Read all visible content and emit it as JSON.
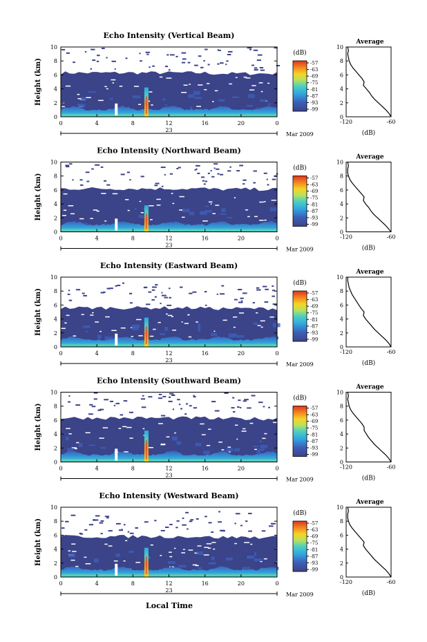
{
  "figure": {
    "xlabel": "Local Time",
    "date_label": "Mar 2009",
    "day_label": "23",
    "colorbar_unit": "(dB)",
    "avg_title": "Average",
    "avg_xlabel": "(dB)",
    "ylabel": "Height (km)"
  },
  "colors": {
    "background_fill": "#3b4389",
    "low_echo": "#3b4389",
    "mid_echo": "#2fa8e0",
    "high_echo": "#f5d427",
    "peak_echo": "#e0331f"
  },
  "chart_data": [
    {
      "type": "heatmap",
      "title": "Echo Intensity (Vertical Beam)",
      "ylabel": "Height (km)",
      "xlabel": "Local Time",
      "xticks": [
        "0",
        "4",
        "8",
        "12",
        "16",
        "20",
        "0"
      ],
      "yticks": [
        "0",
        "2",
        "4",
        "6",
        "8",
        "10"
      ],
      "xlim": [
        0,
        24
      ],
      "ylim": [
        0,
        10
      ],
      "cbar_ticks": [
        "-57",
        "-63",
        "-69",
        "-75",
        "-81",
        "-87",
        "-93",
        "-99"
      ],
      "echo_top_km": 6.3,
      "spike_hour": 9.5,
      "spike_top_km": 4.2,
      "avg_profile": {
        "title": "Average",
        "xlabel": "(dB)",
        "xticks": [
          "-120",
          "-60"
        ],
        "xlim": [
          -120,
          -60
        ],
        "ylim": [
          0,
          10
        ],
        "h": [
          0,
          0.5,
          1,
          1.5,
          2,
          2.5,
          3,
          3.5,
          4,
          4.5,
          5,
          5.5,
          6,
          6.5,
          7,
          7.5,
          8,
          8.5,
          9,
          9.5,
          10
        ],
        "db": [
          -60,
          -63,
          -67,
          -72,
          -77,
          -82,
          -86,
          -89,
          -93,
          -97,
          -96,
          -99,
          -103,
          -107,
          -111,
          -114,
          -116,
          -117,
          -118,
          -117,
          -118
        ]
      }
    },
    {
      "type": "heatmap",
      "title": "Echo Intensity (Northward Beam)",
      "ylabel": "Height (km)",
      "xlabel": "Local Time",
      "xticks": [
        "0",
        "4",
        "8",
        "12",
        "16",
        "20",
        "0"
      ],
      "yticks": [
        "0",
        "2",
        "4",
        "6",
        "8",
        "10"
      ],
      "xlim": [
        0,
        24
      ],
      "ylim": [
        0,
        10
      ],
      "cbar_ticks": [
        "-57",
        "-63",
        "-69",
        "-75",
        "-81",
        "-87",
        "-93",
        "-99"
      ],
      "echo_top_km": 6.2,
      "spike_hour": 9.5,
      "spike_top_km": 3.8,
      "avg_profile": {
        "title": "Average",
        "xlabel": "(dB)",
        "xticks": [
          "-120",
          "-60"
        ],
        "xlim": [
          -120,
          -60
        ],
        "ylim": [
          0,
          10
        ],
        "h": [
          0,
          0.5,
          1,
          1.5,
          2,
          2.5,
          3,
          3.5,
          4,
          4.5,
          5,
          5.5,
          6,
          6.5,
          7,
          7.5,
          8,
          8.5,
          9,
          9.5,
          10
        ],
        "db": [
          -60,
          -64,
          -68,
          -73,
          -78,
          -83,
          -87,
          -90,
          -94,
          -97,
          -96,
          -100,
          -104,
          -108,
          -112,
          -115,
          -117,
          -118,
          -118,
          -117,
          -118
        ]
      }
    },
    {
      "type": "heatmap",
      "title": "Echo Intensity (Eastward Beam)",
      "ylabel": "Height (km)",
      "xlabel": "Local Time",
      "xticks": [
        "0",
        "4",
        "8",
        "12",
        "16",
        "20",
        "0"
      ],
      "yticks": [
        "0",
        "2",
        "4",
        "6",
        "8",
        "10"
      ],
      "xlim": [
        0,
        24
      ],
      "ylim": [
        0,
        10
      ],
      "cbar_ticks": [
        "-57",
        "-63",
        "-69",
        "-75",
        "-81",
        "-87",
        "-93",
        "-99"
      ],
      "echo_top_km": 5.6,
      "spike_hour": 9.5,
      "spike_top_km": 4.2,
      "avg_profile": {
        "title": "Average",
        "xlabel": "(dB)",
        "xticks": [
          "-120",
          "-60"
        ],
        "xlim": [
          -120,
          -60
        ],
        "ylim": [
          0,
          10
        ],
        "h": [
          0,
          0.5,
          1,
          1.5,
          2,
          2.5,
          3,
          3.5,
          4,
          4.5,
          5,
          5.5,
          6,
          6.5,
          7,
          7.5,
          8,
          8.5,
          9,
          9.5,
          10
        ],
        "db": [
          -60,
          -63,
          -67,
          -72,
          -77,
          -82,
          -86,
          -90,
          -94,
          -97,
          -96,
          -100,
          -103,
          -106,
          -109,
          -112,
          -114,
          -116,
          -117,
          -118,
          -118
        ]
      }
    },
    {
      "type": "heatmap",
      "title": "Echo Intensity (Southward Beam)",
      "ylabel": "Height (km)",
      "xlabel": "Local Time",
      "xticks": [
        "0",
        "4",
        "8",
        "12",
        "16",
        "20",
        "0"
      ],
      "yticks": [
        "0",
        "2",
        "4",
        "6",
        "8",
        "10"
      ],
      "xlim": [
        0,
        24
      ],
      "ylim": [
        0,
        10
      ],
      "cbar_ticks": [
        "-57",
        "-63",
        "-69",
        "-75",
        "-81",
        "-87",
        "-93",
        "-99"
      ],
      "echo_top_km": 6.3,
      "spike_hour": 9.5,
      "spike_top_km": 4.5,
      "avg_profile": {
        "title": "Average",
        "xlabel": "(dB)",
        "xticks": [
          "-120",
          "-60"
        ],
        "xlim": [
          -120,
          -60
        ],
        "ylim": [
          0,
          10
        ],
        "h": [
          0,
          0.5,
          1,
          1.5,
          2,
          2.5,
          3,
          3.5,
          4,
          4.5,
          5,
          5.5,
          6,
          6.5,
          7,
          7.5,
          8,
          8.5,
          9,
          9.5,
          10
        ],
        "db": [
          -60,
          -63,
          -67,
          -72,
          -77,
          -82,
          -86,
          -90,
          -93,
          -96,
          -96,
          -99,
          -103,
          -107,
          -111,
          -114,
          -116,
          -117,
          -118,
          -117,
          -118
        ]
      }
    },
    {
      "type": "heatmap",
      "title": "Echo Intensity (Westward Beam)",
      "ylabel": "Height (km)",
      "xlabel": "Local Time",
      "xticks": [
        "0",
        "4",
        "8",
        "12",
        "16",
        "20",
        "0"
      ],
      "yticks": [
        "0",
        "2",
        "4",
        "6",
        "8",
        "10"
      ],
      "xlim": [
        0,
        24
      ],
      "ylim": [
        0,
        10
      ],
      "cbar_ticks": [
        "-57",
        "-63",
        "-69",
        "-75",
        "-81",
        "-87",
        "-93",
        "-99"
      ],
      "echo_top_km": 5.8,
      "spike_hour": 9.5,
      "spike_top_km": 4.2,
      "avg_profile": {
        "title": "Average",
        "xlabel": "(dB)",
        "xticks": [
          "-120",
          "-60"
        ],
        "xlim": [
          -120,
          -60
        ],
        "ylim": [
          0,
          10
        ],
        "h": [
          0,
          0.5,
          1,
          1.5,
          2,
          2.5,
          3,
          3.5,
          4,
          4.5,
          5,
          5.5,
          6,
          6.5,
          7,
          7.5,
          8,
          8.5,
          9,
          9.5,
          10
        ],
        "db": [
          -60,
          -63,
          -67,
          -72,
          -77,
          -82,
          -86,
          -90,
          -94,
          -97,
          -96,
          -100,
          -104,
          -108,
          -112,
          -115,
          -117,
          -118,
          -118,
          -117,
          -118
        ]
      }
    }
  ]
}
